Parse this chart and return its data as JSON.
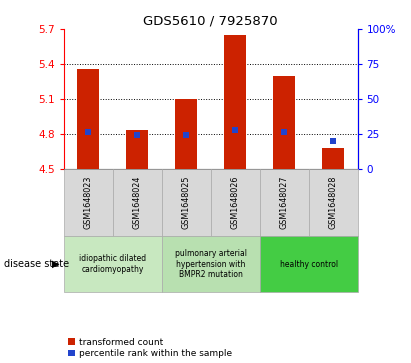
{
  "title": "GDS5610 / 7925870",
  "samples": [
    "GSM1648023",
    "GSM1648024",
    "GSM1648025",
    "GSM1648026",
    "GSM1648027",
    "GSM1648028"
  ],
  "red_values": [
    5.36,
    4.83,
    5.1,
    5.65,
    5.3,
    4.68
  ],
  "blue_pct": [
    26,
    24,
    24,
    28,
    26,
    20
  ],
  "y_min": 4.5,
  "y_max": 5.7,
  "y_ticks_left": [
    4.5,
    4.8,
    5.1,
    5.4,
    5.7
  ],
  "y_ticks_right": [
    0,
    25,
    50,
    75,
    100
  ],
  "bar_color": "#cc2200",
  "blue_color": "#2244cc",
  "sample_bg": "#d8d8d8",
  "group_labels": [
    "idiopathic dilated\ncardiomyopathy",
    "pulmonary arterial\nhypertension with\nBMPR2 mutation",
    "healthy control"
  ],
  "group_colors": [
    "#c8e8c0",
    "#b8e0b0",
    "#44cc44"
  ],
  "disease_label": "disease state",
  "legend_red": "transformed count",
  "legend_blue": "percentile rank within the sample",
  "figsize": [
    4.11,
    3.63
  ],
  "dpi": 100
}
